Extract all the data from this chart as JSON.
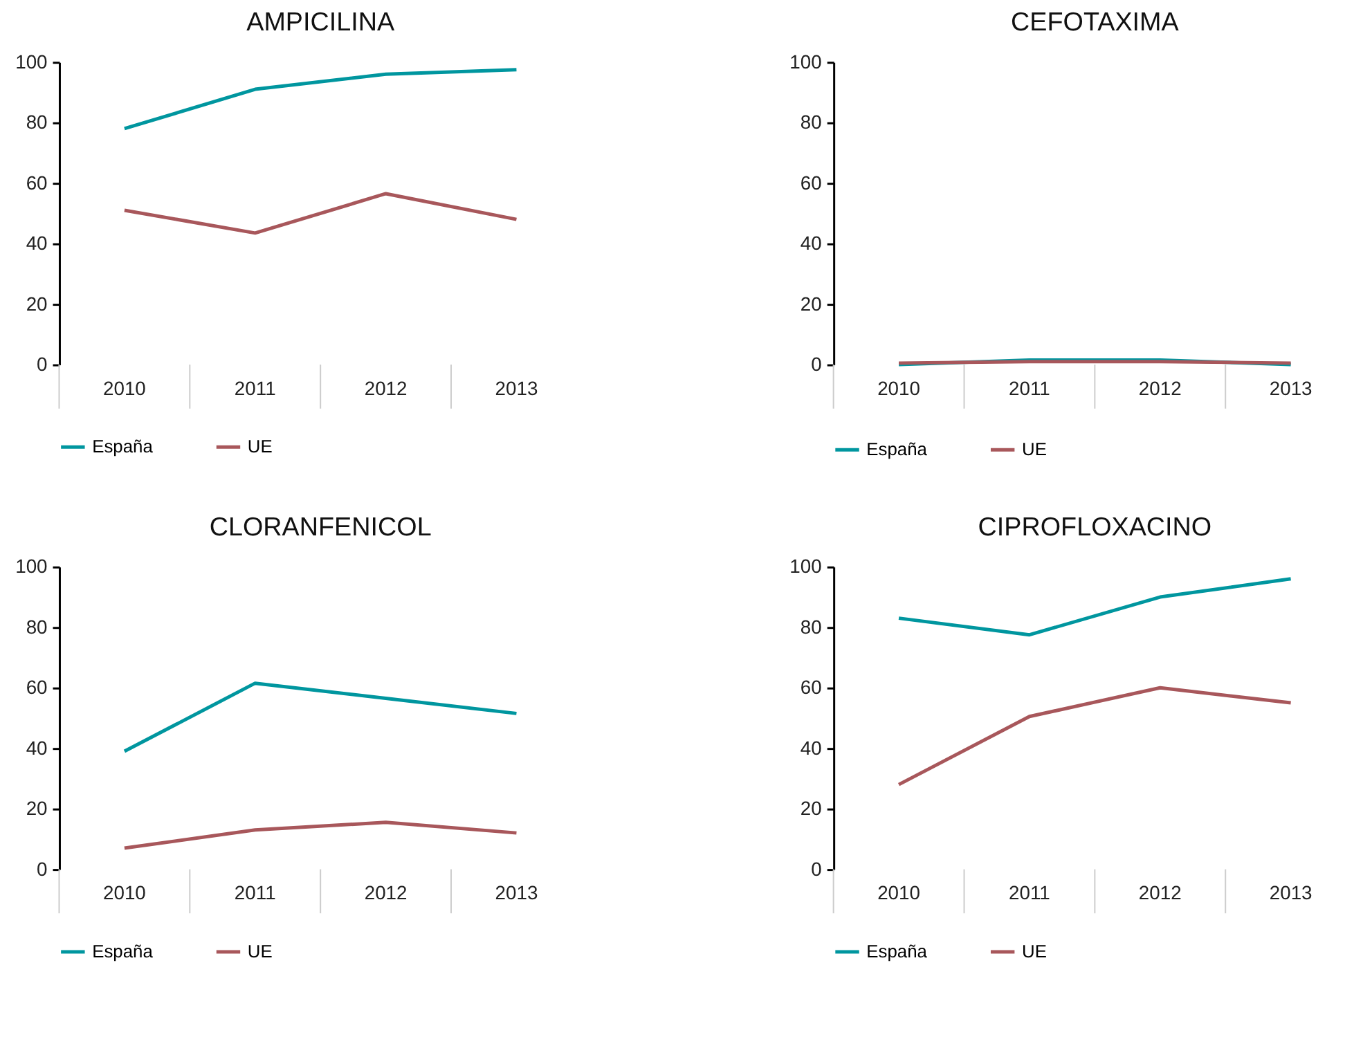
{
  "chart_data": [
    {
      "type": "line",
      "title": "AMPICILINA",
      "categories": [
        "2010",
        "2011",
        "2012",
        "2013"
      ],
      "ylim": [
        0,
        100
      ],
      "yticks": [
        0,
        20,
        40,
        60,
        80,
        100
      ],
      "grid": false,
      "legend": "bottom left",
      "line_style": "solid",
      "marker": "none",
      "series": [
        {
          "name": "España",
          "color": "#00969f",
          "values": [
            78,
            91,
            96,
            97.5
          ]
        },
        {
          "name": "UE",
          "color": "#a8575b",
          "values": [
            51,
            43.5,
            56.5,
            48
          ]
        }
      ]
    },
    {
      "type": "line",
      "title": "CEFOTAXIMA",
      "categories": [
        "2010",
        "2011",
        "2012",
        "2013"
      ],
      "ylim": [
        0,
        100
      ],
      "yticks": [
        0,
        20,
        40,
        60,
        80,
        100
      ],
      "grid": false,
      "legend": "bottom left",
      "line_style": "solid",
      "marker": "none",
      "series": [
        {
          "name": "España",
          "color": "#00969f",
          "values": [
            0,
            1.5,
            1.5,
            0
          ]
        },
        {
          "name": "UE",
          "color": "#a8575b",
          "values": [
            0.5,
            1,
            1,
            0.5
          ]
        }
      ]
    },
    {
      "type": "line",
      "title": "CLORANFENICOL",
      "categories": [
        "2010",
        "2011",
        "2012",
        "2013"
      ],
      "ylim": [
        0,
        100
      ],
      "yticks": [
        0,
        20,
        40,
        60,
        80,
        100
      ],
      "grid": false,
      "legend": "bottom left",
      "line_style": "solid",
      "marker": "none",
      "series": [
        {
          "name": "España",
          "color": "#00969f",
          "values": [
            39,
            61.5,
            56.5,
            51.5
          ]
        },
        {
          "name": "UE",
          "color": "#a8575b",
          "values": [
            7,
            13,
            15.5,
            12
          ]
        }
      ]
    },
    {
      "type": "line",
      "title": "CIPROFLOXACINO",
      "categories": [
        "2010",
        "2011",
        "2012",
        "2013"
      ],
      "ylim": [
        0,
        100
      ],
      "yticks": [
        0,
        20,
        40,
        60,
        80,
        100
      ],
      "grid": false,
      "legend": "bottom left",
      "line_style": "solid",
      "marker": "none",
      "series": [
        {
          "name": "España",
          "color": "#00969f",
          "values": [
            83,
            77.5,
            90,
            96
          ]
        },
        {
          "name": "UE",
          "color": "#a8575b",
          "values": [
            28,
            50.5,
            60,
            55
          ]
        }
      ]
    }
  ]
}
